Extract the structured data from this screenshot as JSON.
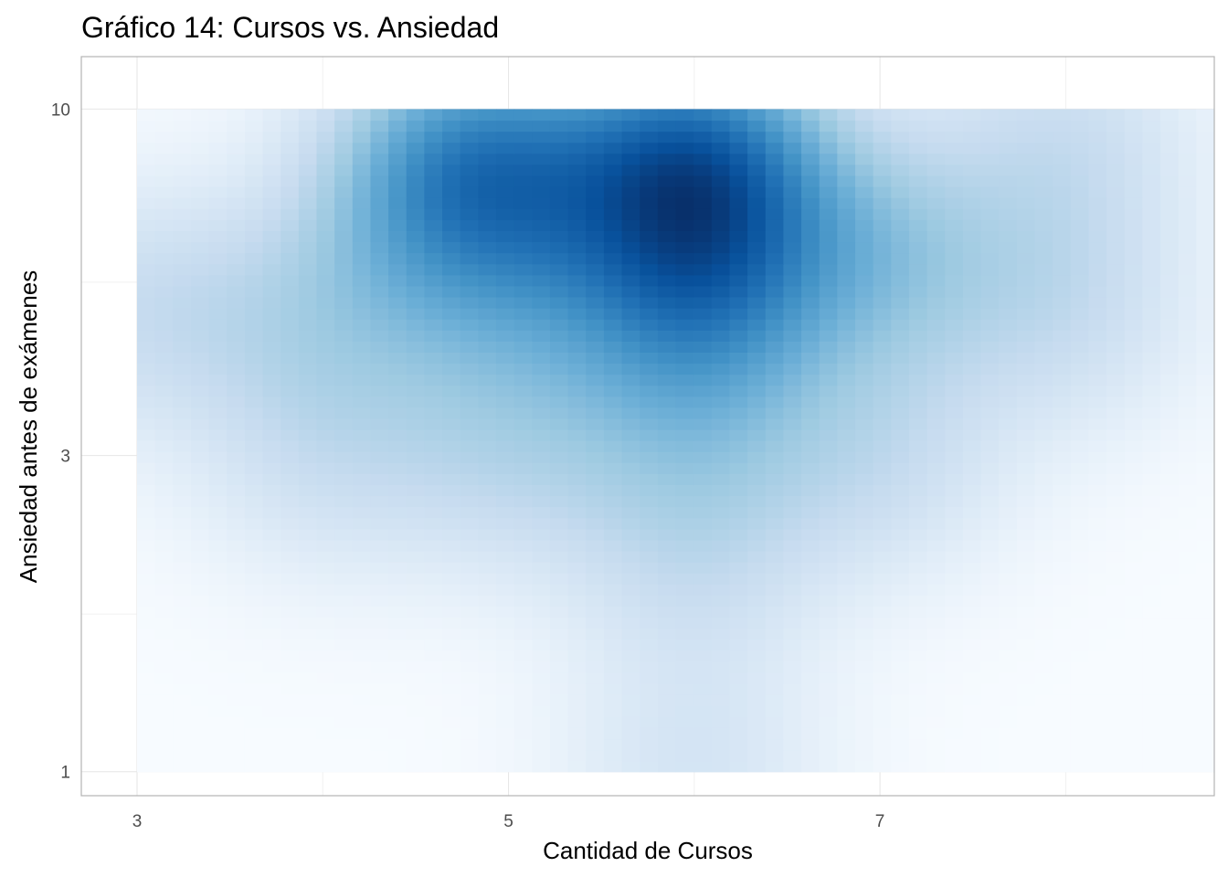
{
  "chart_data": {
    "type": "heatmap",
    "title": "Gráfico 14: Cursos vs. Ansiedad",
    "xlabel": "Cantidad de Cursos",
    "ylabel": "Ansiedad antes de exámenes",
    "x_scale": "linear",
    "y_scale": "log10",
    "xlim": [
      2.7,
      8.8
    ],
    "ylim": [
      0.92,
      12.0
    ],
    "x_ticks": [
      3,
      5,
      7
    ],
    "x_tick_labels": [
      "3",
      "5",
      "7"
    ],
    "x_minor_ticks": [
      4,
      6,
      8
    ],
    "y_ticks": [
      1,
      3,
      10
    ],
    "y_tick_labels": [
      "1",
      "3",
      "10"
    ],
    "y_minor_ticks": [
      1.73,
      5.48
    ],
    "grid": true,
    "legend": "none",
    "colors": [
      "#f7fbff",
      "#deebf7",
      "#c6dbef",
      "#9ecae1",
      "#6baed6",
      "#4292c6",
      "#2171b5",
      "#08519c",
      "#08306b"
    ],
    "density_extent": {
      "x": [
        3,
        8.8
      ],
      "y": [
        1,
        10
      ]
    },
    "kernels": [
      {
        "x": 4.7,
        "y": 8,
        "w": 1.0
      },
      {
        "x": 4.7,
        "y": 8,
        "w": 0.5
      },
      {
        "x": 5.0,
        "y": 8,
        "w": 1.0
      },
      {
        "x": 6.0,
        "y": 8,
        "w": 1.0
      },
      {
        "x": 6.0,
        "y": 8,
        "w": 1.0
      },
      {
        "x": 6.0,
        "y": 8,
        "w": 0.8
      },
      {
        "x": 7.0,
        "y": 6,
        "w": 1.0
      },
      {
        "x": 6.0,
        "y": 5,
        "w": 1.0
      },
      {
        "x": 6.0,
        "y": 5,
        "w": 0.6
      },
      {
        "x": 5.0,
        "y": 5,
        "w": 0.7
      },
      {
        "x": 4.0,
        "y": 5,
        "w": 0.7
      },
      {
        "x": 3.0,
        "y": 5,
        "w": 0.6
      },
      {
        "x": 8.0,
        "y": 5,
        "w": 0.6
      },
      {
        "x": 8.0,
        "y": 9,
        "w": 0.6
      },
      {
        "x": 5.0,
        "y": 3,
        "w": 0.6
      },
      {
        "x": 6.0,
        "y": 3,
        "w": 0.6
      },
      {
        "x": 4.0,
        "y": 3,
        "w": 0.5
      },
      {
        "x": 7.0,
        "y": 3,
        "w": 0.6
      },
      {
        "x": 6.0,
        "y": 2,
        "w": 0.45
      },
      {
        "x": 6.0,
        "y": 1,
        "w": 0.45
      }
    ],
    "bandwidth": {
      "x": 0.5,
      "log10_y": 0.13
    }
  }
}
